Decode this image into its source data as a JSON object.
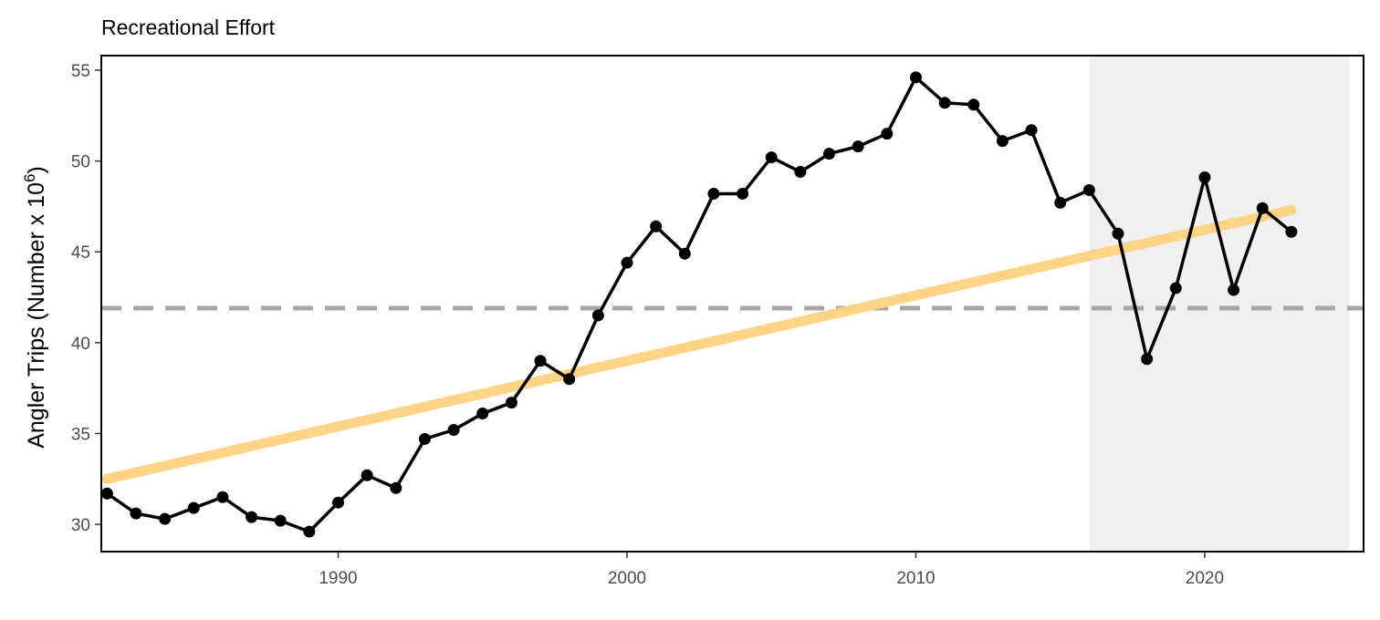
{
  "chart_data": {
    "type": "line",
    "title": "Recreational Effort",
    "ylabel": {
      "prefix": "Angler Trips (Number x 10",
      "superscript": "6",
      "suffix": ")"
    },
    "xlabel": "",
    "xlim": [
      1981.8,
      2025.5
    ],
    "ylim": [
      28.5,
      55.8
    ],
    "x_ticks": [
      1990,
      2000,
      2010,
      2020
    ],
    "y_ticks": [
      30,
      35,
      40,
      45,
      50,
      55
    ],
    "grid": false,
    "mean_line": {
      "y": 41.9,
      "color": "#a6a6a6",
      "style": "dashed"
    },
    "trend_line": {
      "x": [
        1982,
        2023
      ],
      "y": [
        32.5,
        47.3
      ],
      "color": "#ffd27f"
    },
    "shaded_region": {
      "x": [
        2016,
        2025
      ],
      "color": "#f0f0f0"
    },
    "series": [
      {
        "color": "#000000",
        "x": [
          1982,
          1983,
          1984,
          1985,
          1986,
          1987,
          1988,
          1989,
          1990,
          1991,
          1992,
          1993,
          1994,
          1995,
          1996,
          1997,
          1998,
          1999,
          2000,
          2001,
          2002,
          2003,
          2004,
          2005,
          2006,
          2007,
          2008,
          2009,
          2010,
          2011,
          2012,
          2013,
          2014,
          2015,
          2016,
          2017,
          2018,
          2019,
          2020,
          2021,
          2022,
          2023
        ],
        "y": [
          31.7,
          30.6,
          30.3,
          30.9,
          31.5,
          30.4,
          30.2,
          29.6,
          31.2,
          32.7,
          32.0,
          34.7,
          35.2,
          36.1,
          36.7,
          39.0,
          38.0,
          41.5,
          44.4,
          46.4,
          44.9,
          48.2,
          48.2,
          50.2,
          49.4,
          50.4,
          50.8,
          51.5,
          54.6,
          53.2,
          53.1,
          51.1,
          51.7,
          47.7,
          48.4,
          46.0,
          39.1,
          43.0,
          49.1,
          42.9,
          47.4,
          46.1
        ]
      }
    ]
  }
}
